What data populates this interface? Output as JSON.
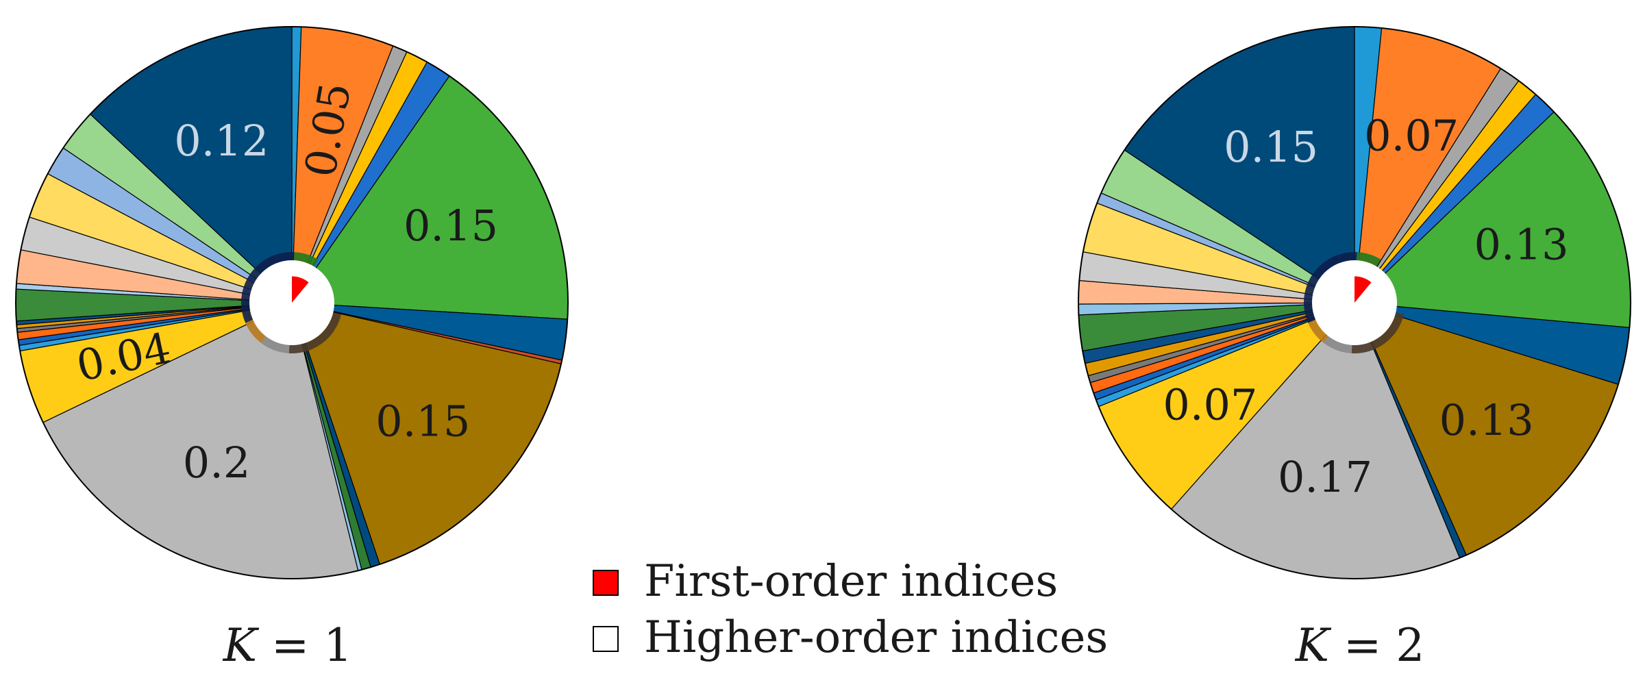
{
  "chart_data": [
    {
      "type": "pie",
      "title": "",
      "caption_var": "K",
      "caption_eq": " = 1",
      "first_order_total": 0.11,
      "slices": [
        {
          "value": 0.005,
          "color": "#1f9ad6",
          "label": ""
        },
        {
          "value": 0.05,
          "color": "#ff7f27",
          "label": "0.05",
          "text_color": "#1a1a1a",
          "rotate": -80
        },
        {
          "value": 0.008,
          "color": "#a6a6a6",
          "label": ""
        },
        {
          "value": 0.012,
          "color": "#ffc000",
          "label": ""
        },
        {
          "value": 0.014,
          "color": "#1f6fcf",
          "label": ""
        },
        {
          "value": 0.15,
          "color": "#44b039",
          "label": "0.15",
          "text_color": "#1a1a1a"
        },
        {
          "value": 0.022,
          "color": "#005a95",
          "label": ""
        },
        {
          "value": 0.002,
          "color": "#c8502a",
          "label": ""
        },
        {
          "value": 0.15,
          "color": "#a27500",
          "label": "0.15",
          "text_color": "#1a1a1a"
        },
        {
          "value": 0.005,
          "color": "#004a80",
          "label": ""
        },
        {
          "value": 0.005,
          "color": "#2e7d32",
          "label": ""
        },
        {
          "value": 0.002,
          "color": "#8fc3e8",
          "label": ""
        },
        {
          "value": 0.2,
          "color": "#b8b8b8",
          "label": "0.2",
          "text_color": "#1a1a1a"
        },
        {
          "value": 0.04,
          "color": "#ffcd16",
          "label": "0.04",
          "text_color": "#1a1a1a",
          "rotate": -12
        },
        {
          "value": 0.003,
          "color": "#2a9ee0",
          "label": ""
        },
        {
          "value": 0.003,
          "color": "#1565c0",
          "label": ""
        },
        {
          "value": 0.004,
          "color": "#ff6a13",
          "label": ""
        },
        {
          "value": 0.002,
          "color": "#7a7a7a",
          "label": ""
        },
        {
          "value": 0.002,
          "color": "#e09a00",
          "label": ""
        },
        {
          "value": 0.002,
          "color": "#0b4f8a",
          "label": ""
        },
        {
          "value": 0.017,
          "color": "#3a8c3a",
          "label": ""
        },
        {
          "value": 0.003,
          "color": "#a9cdee",
          "label": ""
        },
        {
          "value": 0.018,
          "color": "#ffb68b",
          "label": ""
        },
        {
          "value": 0.018,
          "color": "#cccccc",
          "label": ""
        },
        {
          "value": 0.025,
          "color": "#ffdb60",
          "label": ""
        },
        {
          "value": 0.016,
          "color": "#8eb4e3",
          "label": ""
        },
        {
          "value": 0.023,
          "color": "#99d68e",
          "label": ""
        },
        {
          "value": 0.12,
          "color": "#004a7a",
          "label": "0.12",
          "text_color": "#c9d8e6"
        }
      ]
    },
    {
      "type": "pie",
      "title": "",
      "caption_var": "K",
      "caption_eq": " = 2",
      "first_order_total": 0.11,
      "slices": [
        {
          "value": 0.015,
          "color": "#1f9ad6",
          "label": ""
        },
        {
          "value": 0.07,
          "color": "#ff7f27",
          "label": "0.07",
          "text_color": "#1a1a1a"
        },
        {
          "value": 0.012,
          "color": "#a6a6a6",
          "label": ""
        },
        {
          "value": 0.012,
          "color": "#ffc000",
          "label": ""
        },
        {
          "value": 0.014,
          "color": "#1f6fcf",
          "label": ""
        },
        {
          "value": 0.13,
          "color": "#44b039",
          "label": "0.13",
          "text_color": "#1a1a1a"
        },
        {
          "value": 0.032,
          "color": "#005a95",
          "label": ""
        },
        {
          "value": 0.13,
          "color": "#a27500",
          "label": "0.13",
          "text_color": "#1a1a1a"
        },
        {
          "value": 0.004,
          "color": "#004a80",
          "label": ""
        },
        {
          "value": 0.17,
          "color": "#b8b8b8",
          "label": "0.17",
          "text_color": "#1a1a1a"
        },
        {
          "value": 0.07,
          "color": "#ffcd16",
          "label": "0.07",
          "text_color": "#1a1a1a"
        },
        {
          "value": 0.004,
          "color": "#2a9ee0",
          "label": ""
        },
        {
          "value": 0.004,
          "color": "#1565c0",
          "label": ""
        },
        {
          "value": 0.006,
          "color": "#ff6a13",
          "label": ""
        },
        {
          "value": 0.004,
          "color": "#7a7a7a",
          "label": ""
        },
        {
          "value": 0.007,
          "color": "#e09a00",
          "label": ""
        },
        {
          "value": 0.007,
          "color": "#0b4f8a",
          "label": ""
        },
        {
          "value": 0.02,
          "color": "#3a8c3a",
          "label": ""
        },
        {
          "value": 0.006,
          "color": "#8fc3e8",
          "label": ""
        },
        {
          "value": 0.013,
          "color": "#ffb68b",
          "label": ""
        },
        {
          "value": 0.016,
          "color": "#cccccc",
          "label": ""
        },
        {
          "value": 0.028,
          "color": "#ffdb60",
          "label": ""
        },
        {
          "value": 0.006,
          "color": "#8eb4e3",
          "label": ""
        },
        {
          "value": 0.027,
          "color": "#99d68e",
          "label": ""
        },
        {
          "value": 0.15,
          "color": "#004a7a",
          "label": "0.15",
          "text_color": "#c9d8e6"
        }
      ]
    }
  ],
  "legend": {
    "items": [
      {
        "label": "First-order indices",
        "color": "#ff0000"
      },
      {
        "label": "Higher-order indices",
        "color": "#ffffff"
      }
    ]
  },
  "ring_colors": [
    "#0d1f4d",
    "#b87a1e",
    "#1f7a1f",
    "#4a3a2a",
    "#8a8a8a"
  ]
}
